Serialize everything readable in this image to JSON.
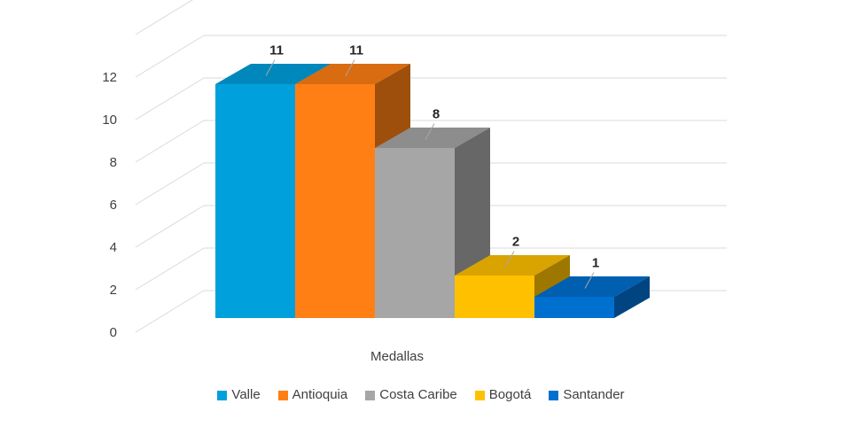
{
  "chart_data": {
    "type": "bar",
    "categories": [
      "Medallas"
    ],
    "series": [
      {
        "name": "Valle",
        "values": [
          11
        ],
        "color": "#00A0DD"
      },
      {
        "name": "Antioquia",
        "values": [
          11
        ],
        "color": "#FF7F14"
      },
      {
        "name": "Costa Caribe",
        "values": [
          8
        ],
        "color": "#A6A6A6"
      },
      {
        "name": "Bogotá",
        "values": [
          2
        ],
        "color": "#FFC000"
      },
      {
        "name": "Santander",
        "values": [
          1
        ],
        "color": "#0070D0"
      }
    ],
    "y_ticks": [
      "0",
      "2",
      "4",
      "6",
      "8",
      "10",
      "12"
    ],
    "ylim": [
      0,
      14
    ],
    "grid": true,
    "style": "3d-clustered-column",
    "data_labels": true,
    "legend_position": "bottom"
  }
}
